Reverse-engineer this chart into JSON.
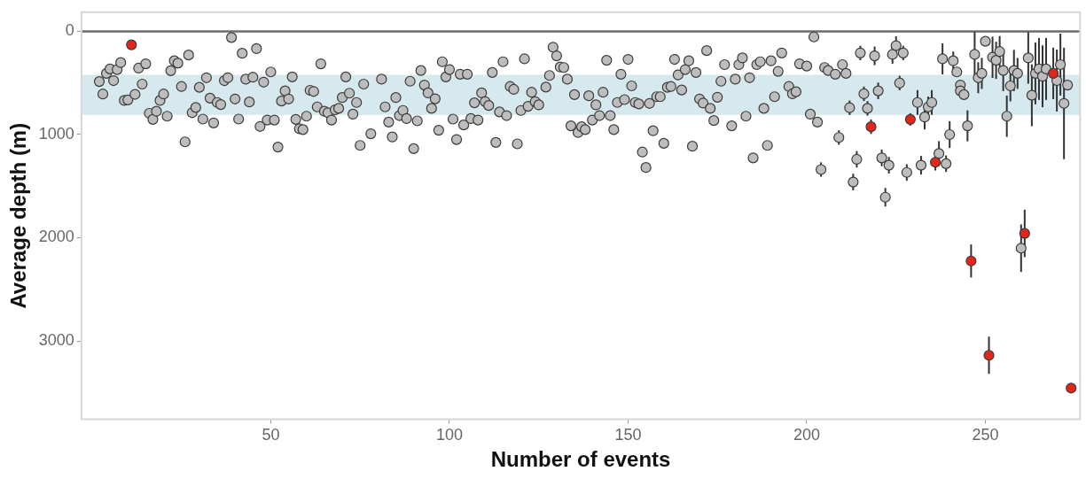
{
  "chart_data": {
    "type": "scatter",
    "xlabel": "Number of events",
    "ylabel": "Average depth (m)",
    "xlim": [
      -3,
      276.5
    ],
    "xticks": [
      50,
      100,
      150,
      200,
      250
    ],
    "ylim": [
      3760,
      -186
    ],
    "yticks": [
      0,
      1000,
      2000,
      3000
    ],
    "marker": "circle",
    "legend": false,
    "grid": false,
    "bands": [
      {
        "axis": "y",
        "from": 420,
        "to": 810,
        "color": "#d5e9ef"
      }
    ],
    "ref_lines": [
      {
        "axis": "y",
        "value": 0,
        "color": "#6b6b6b"
      }
    ],
    "series": [
      {
        "color": "#bdbdbd",
        "x": [
          2,
          3,
          4,
          5,
          6,
          7,
          8,
          9,
          10,
          12,
          13,
          14,
          15,
          16,
          17,
          18,
          19,
          20,
          21,
          22,
          23,
          24,
          25,
          26,
          27,
          28,
          29,
          30,
          31,
          32,
          33,
          34,
          35,
          36,
          37,
          38,
          39,
          40,
          41,
          42,
          43,
          44,
          45,
          46,
          47,
          48,
          49,
          50,
          51,
          52,
          53,
          54,
          55,
          56,
          57,
          58,
          59,
          60,
          61,
          62,
          63,
          64,
          65,
          66,
          67,
          68,
          69,
          70,
          71,
          72,
          73,
          74,
          75,
          76,
          78,
          81,
          82,
          83,
          84,
          85,
          86,
          87,
          88,
          89,
          90,
          91,
          92,
          93,
          94,
          95,
          96,
          97,
          98,
          99,
          100,
          101,
          102,
          103,
          104,
          105,
          106,
          107,
          108,
          109,
          110,
          111,
          112,
          113,
          114,
          115,
          116,
          117,
          118,
          119,
          120,
          121,
          122,
          123,
          124,
          125,
          127,
          128,
          129,
          130,
          131,
          132,
          133,
          134,
          135,
          136,
          137,
          138,
          139,
          140,
          141,
          142,
          143,
          144,
          145,
          146,
          147,
          148,
          149,
          150,
          151,
          152,
          153,
          154,
          155,
          156,
          157,
          158,
          159,
          160,
          161,
          162,
          163,
          164,
          165,
          166,
          167,
          168,
          169,
          170,
          171,
          172,
          173,
          174,
          175,
          176,
          177,
          179,
          180,
          181,
          182,
          183,
          184,
          185,
          186,
          187,
          188,
          189,
          190,
          191,
          192,
          193,
          195,
          196,
          197,
          198,
          200,
          201,
          202,
          203,
          204,
          205,
          206,
          208,
          209,
          210,
          211,
          212,
          213,
          214,
          215,
          216,
          217,
          219,
          220,
          221,
          222,
          223,
          224,
          225,
          226,
          227,
          228,
          231,
          232,
          233,
          234,
          235,
          237,
          238,
          239,
          240,
          241,
          242,
          243,
          243,
          244,
          245,
          247,
          248,
          249,
          250,
          252,
          253,
          254,
          255,
          256,
          257,
          258,
          259,
          260,
          262,
          263,
          264,
          265,
          266,
          267,
          270,
          271,
          272,
          273
        ],
        "values": [
          486,
          607,
          407,
          364,
          477,
          370,
          302,
          669,
          664,
          610,
          356,
          511,
          314,
          794,
          853,
          774,
          669,
          607,
          822,
          381,
          285,
          308,
          534,
          1071,
          229,
          788,
          737,
          542,
          850,
          449,
          647,
          887,
          689,
          709,
          477,
          449,
          59,
          655,
          850,
          212,
          463,
          684,
          444,
          167,
          921,
          492,
          859,
          393,
          859,
          1121,
          675,
          576,
          655,
          441,
          853,
          944,
          952,
          822,
          571,
          582,
          732,
          314,
          774,
          788,
          859,
          760,
          746,
          641,
          441,
          599,
          802,
          689,
          1105,
          511,
          992,
          463,
          732,
          879,
          1023,
          641,
          816,
          766,
          845,
          483,
          1136,
          867,
          379,
          520,
          596,
          746,
          653,
          958,
          294,
          441,
          370,
          850,
          1048,
          415,
          907,
          415,
          845,
          692,
          859,
          596,
          681,
          718,
          398,
          1076,
          780,
          294,
          816,
          534,
          562,
          1090,
          766,
          266,
          726,
          590,
          681,
          712,
          540,
          427,
          153,
          237,
          345,
          350,
          463,
          915,
          613,
          980,
          924,
          952,
          624,
          859,
          712,
          816,
          590,
          280,
          816,
          952,
          689,
          415,
          661,
          271,
          528,
          689,
          703,
          1169,
          1319,
          698,
          963,
          633,
          633,
          1085,
          542,
          534,
          271,
          421,
          568,
          370,
          285,
          1113,
          398,
          655,
          695,
          186,
          746,
          864,
          638,
          483,
          322,
          915,
          463,
          322,
          257,
          822,
          449,
          1226,
          322,
          294,
          746,
          1105,
          285,
          633,
          387,
          209,
          534,
          605,
          585,
          314,
          336,
          802,
          54,
          879,
          1339,
          350,
          379,
          415,
          1028,
          322,
          407,
          740,
          1460,
          1240,
          209,
          605,
          746,
          237,
          576,
          1226,
          1607,
          1297,
          223,
          138,
          500,
          209,
          1367,
          689,
          1297,
          830,
          732,
          689,
          1184,
          266,
          1282,
          1000,
          285,
          393,
          520,
          576,
          613,
          915,
          223,
          449,
          407,
          96,
          251,
          280,
          195,
          379,
          822,
          528,
          379,
          407,
          2101,
          257,
          619,
          407,
          364,
          435,
          364,
          477,
          322,
          698,
          520
        ],
        "errors": [
          null,
          null,
          null,
          null,
          null,
          null,
          null,
          null,
          null,
          null,
          null,
          null,
          null,
          null,
          null,
          null,
          null,
          null,
          null,
          null,
          null,
          null,
          null,
          null,
          null,
          null,
          null,
          null,
          null,
          null,
          null,
          null,
          null,
          null,
          null,
          null,
          null,
          null,
          null,
          null,
          null,
          null,
          null,
          null,
          null,
          null,
          null,
          null,
          null,
          null,
          null,
          null,
          null,
          null,
          null,
          null,
          null,
          null,
          null,
          null,
          null,
          null,
          null,
          null,
          null,
          null,
          null,
          null,
          null,
          null,
          null,
          null,
          null,
          null,
          null,
          null,
          null,
          null,
          null,
          null,
          null,
          null,
          null,
          null,
          null,
          null,
          null,
          null,
          null,
          null,
          null,
          null,
          null,
          null,
          null,
          null,
          null,
          null,
          null,
          null,
          null,
          null,
          null,
          null,
          null,
          null,
          null,
          null,
          null,
          null,
          null,
          null,
          null,
          null,
          null,
          null,
          null,
          null,
          null,
          null,
          null,
          null,
          null,
          null,
          null,
          null,
          null,
          null,
          null,
          null,
          null,
          null,
          null,
          null,
          null,
          null,
          null,
          null,
          null,
          null,
          null,
          null,
          null,
          null,
          null,
          null,
          null,
          null,
          null,
          null,
          null,
          null,
          null,
          null,
          null,
          null,
          null,
          null,
          null,
          null,
          null,
          null,
          null,
          null,
          null,
          null,
          null,
          null,
          null,
          null,
          null,
          null,
          null,
          null,
          null,
          null,
          null,
          null,
          null,
          null,
          null,
          null,
          null,
          null,
          null,
          null,
          null,
          null,
          null,
          null,
          null,
          null,
          40,
          null,
          70,
          null,
          null,
          null,
          70,
          null,
          null,
          70,
          80,
          80,
          70,
          70,
          70,
          90,
          80,
          80,
          90,
          80,
          90,
          90,
          70,
          70,
          80,
          120,
          90,
          120,
          100,
          120,
          120,
          150,
          80,
          130,
          90,
          null,
          null,
          null,
          null,
          150,
          220,
          150,
          150,
          null,
          200,
          180,
          150,
          200,
          200,
          150,
          200,
          150,
          230,
          250,
          300,
          300,
          300,
          300,
          300,
          300,
          300,
          540,
          null
        ]
      },
      {
        "color": "#e32619",
        "x": [
          11,
          218,
          229,
          236,
          246,
          251,
          261,
          269,
          274
        ],
        "values": [
          130,
          924,
          853,
          1268,
          2225,
          3139,
          1958,
          407,
          3457
        ],
        "errors": [
          null,
          70,
          60,
          80,
          160,
          180,
          230,
          250,
          null
        ]
      }
    ]
  }
}
